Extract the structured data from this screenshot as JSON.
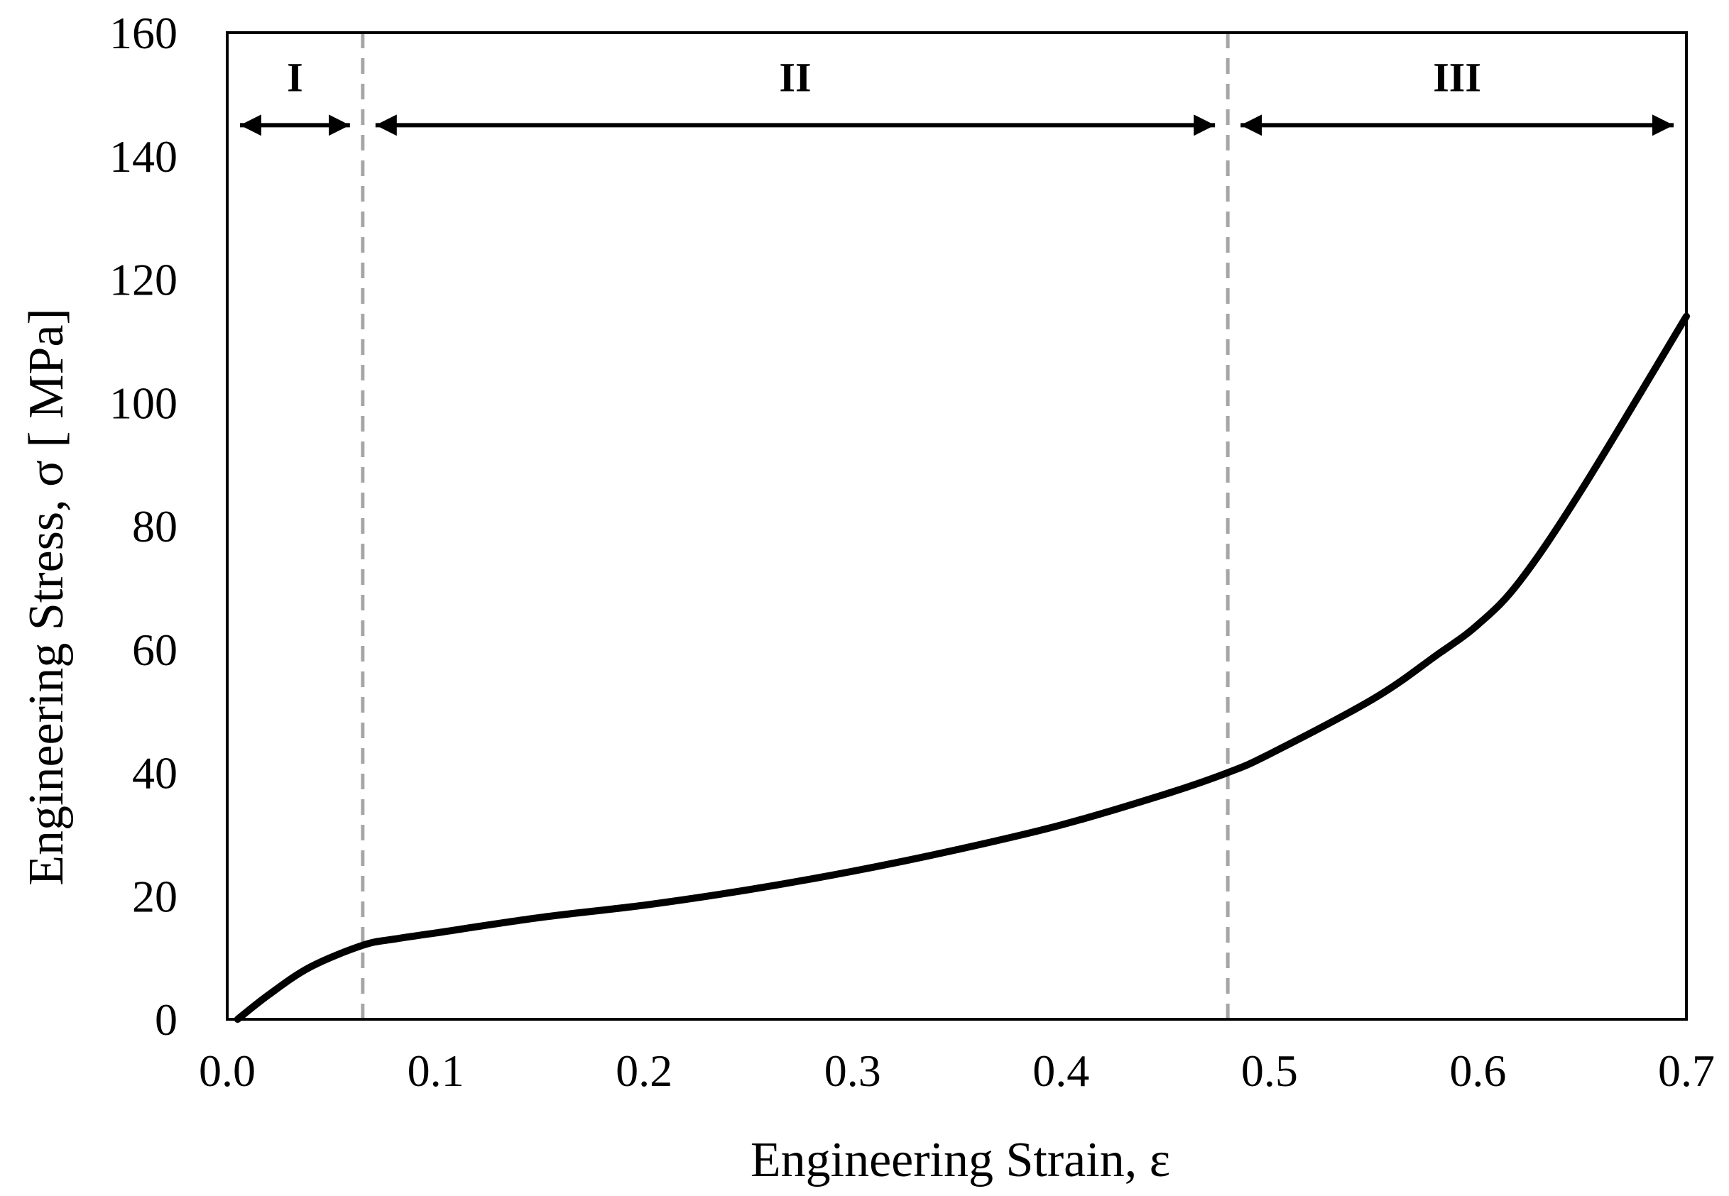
{
  "chart_data": {
    "type": "line",
    "title": "",
    "xlabel": "Engineering Strain, ε",
    "ylabel": "Engineering Stress,  σ [ MPa]",
    "xlim": [
      0.0,
      0.7
    ],
    "ylim": [
      0,
      160
    ],
    "x_ticks": [
      "0.0",
      "0.1",
      "0.2",
      "0.3",
      "0.4",
      "0.5",
      "0.6",
      "0.7"
    ],
    "y_ticks": [
      "0",
      "20",
      "40",
      "60",
      "80",
      "100",
      "120",
      "140",
      "160"
    ],
    "grid": false,
    "legend": "none",
    "series": [
      {
        "color": "#000000",
        "x": [
          0.005,
          0.02,
          0.04,
          0.065,
          0.08,
          0.1,
          0.15,
          0.2,
          0.25,
          0.3,
          0.35,
          0.4,
          0.45,
          0.48,
          0.5,
          0.55,
          0.58,
          0.6,
          0.62,
          0.65,
          0.7
        ],
        "y": [
          0,
          4,
          8.5,
          12,
          13,
          14,
          16.5,
          18.5,
          21,
          24,
          27.5,
          31.5,
          36.5,
          40,
          43,
          52,
          59,
          64,
          71,
          86,
          114
        ]
      }
    ],
    "region_boundaries": {
      "color": "#a6a6a6",
      "x": [
        0.065,
        0.48
      ]
    },
    "regions": [
      {
        "label": "I",
        "x_start": 0.0,
        "x_end": 0.065
      },
      {
        "label": "II",
        "x_start": 0.065,
        "x_end": 0.48
      },
      {
        "label": "III",
        "x_start": 0.48,
        "x_end": 0.7
      }
    ],
    "region_arrow_y": 145
  }
}
